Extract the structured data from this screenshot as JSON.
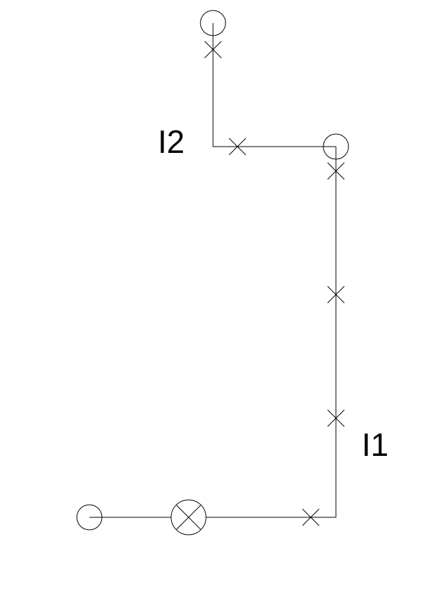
{
  "diagram": {
    "labels": {
      "line_top": "I2",
      "line_right": "I1"
    },
    "colors": {
      "line": "#000000",
      "background": "#ffffff"
    }
  }
}
